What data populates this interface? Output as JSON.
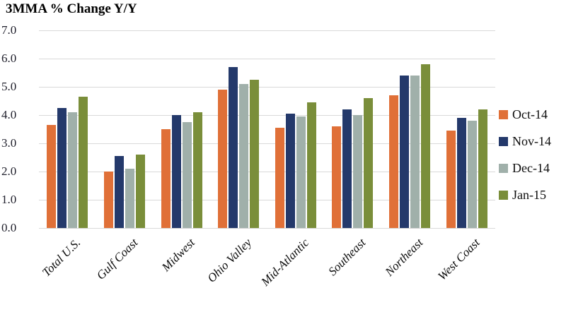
{
  "chart_data": {
    "type": "bar",
    "title": "3MMA % Change Y/Y",
    "categories": [
      "Total U.S.",
      "Gulf Coast",
      "Midwest",
      "Ohio Valley",
      "Mid-Atlantic",
      "Southeast",
      "Northeast",
      "West Coast"
    ],
    "series": [
      {
        "name": "Oct-14",
        "color": "#e07038",
        "values": [
          3.65,
          2.0,
          3.5,
          4.9,
          3.55,
          3.6,
          4.7,
          3.45
        ]
      },
      {
        "name": "Nov-14",
        "color": "#24396b",
        "values": [
          4.25,
          2.55,
          4.0,
          5.7,
          4.05,
          4.2,
          5.4,
          3.9
        ]
      },
      {
        "name": "Dec-14",
        "color": "#a0b0aa",
        "values": [
          4.1,
          2.1,
          3.75,
          5.1,
          3.95,
          4.0,
          5.4,
          3.8
        ]
      },
      {
        "name": "Jan-15",
        "color": "#7a8e3a",
        "values": [
          4.65,
          2.6,
          4.1,
          5.25,
          4.45,
          4.6,
          5.8,
          4.2
        ]
      }
    ],
    "xlabel": "",
    "ylabel": "",
    "ylim": [
      0,
      7
    ],
    "ytick_step": 1.0,
    "ytick_labels": [
      "7.0",
      "6.0",
      "5.0",
      "4.0",
      "3.0",
      "2.0",
      "1.0",
      "0.0"
    ],
    "grid": true,
    "grid_color": "#d9d9d9",
    "legend_position": "right"
  }
}
